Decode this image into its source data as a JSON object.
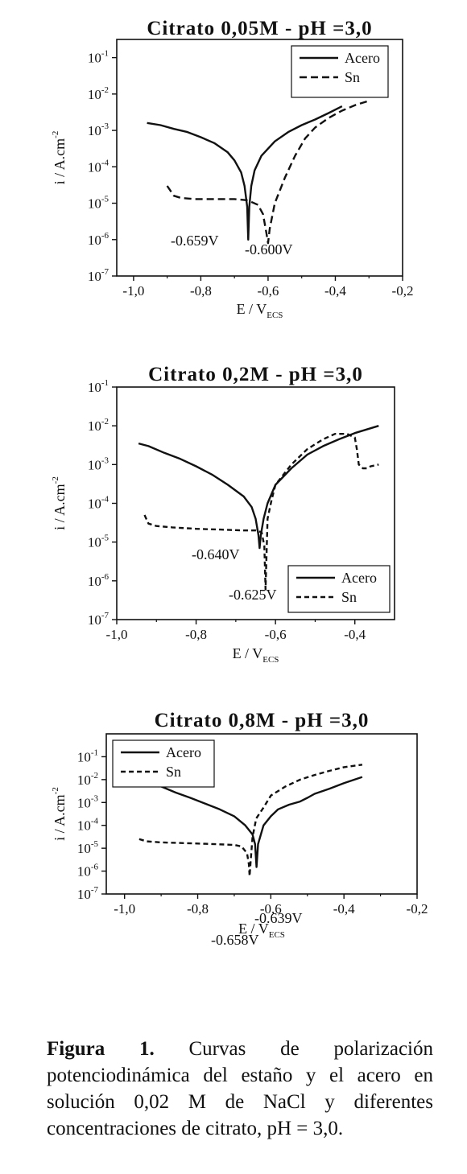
{
  "caption": {
    "label": "Figura 1.",
    "text": "Curvas de polarización potenciodinámica del estaño y el acero en solución 0,02 M de NaCl y diferentes concentraciones de citrato, pH = 3,0."
  },
  "chart_data": [
    {
      "type": "line",
      "title": "Citrato 0,05M - pH =3,0",
      "xlabel": "E / V",
      "xlabel_sub": "ECS",
      "ylabel": "i / A.cm",
      "ylabel_sup": "-2",
      "xlim": [
        -1.05,
        -0.2
      ],
      "ylim_log10": [
        -7,
        -0.5
      ],
      "y_scale": "log",
      "x_ticks": [
        -1.0,
        -0.8,
        -0.6,
        -0.4,
        -0.2
      ],
      "x_tick_labels": [
        "-1,0",
        "-0,8",
        "-0,6",
        "-0,4",
        "-0,2"
      ],
      "y_ticks_exp": [
        -7,
        -6,
        -5,
        -4,
        -3,
        -2,
        -1
      ],
      "y_tick_labels": [
        "10",
        "10",
        "10",
        "10",
        "10",
        "10",
        "10"
      ],
      "y_tick_sups": [
        "-7",
        "-6",
        "-5",
        "-4",
        "-3",
        "-2",
        "-1"
      ],
      "legend": {
        "placement": "top-right",
        "entries": [
          "Acero",
          "Sn"
        ]
      },
      "series": [
        {
          "name": "Acero",
          "style": "solid",
          "x": [
            -0.96,
            -0.92,
            -0.88,
            -0.84,
            -0.8,
            -0.76,
            -0.72,
            -0.7,
            -0.68,
            -0.67,
            -0.662,
            -0.659,
            -0.656,
            -0.65,
            -0.64,
            -0.62,
            -0.58,
            -0.54,
            -0.5,
            -0.46,
            -0.42,
            -0.38
          ],
          "y": [
            0.0016,
            0.0014,
            0.0011,
            0.0009,
            0.00065,
            0.00045,
            0.00025,
            0.00015,
            7e-05,
            3e-05,
            8e-06,
            1e-06,
            8e-06,
            3e-05,
            8e-05,
            0.0002,
            0.0005,
            0.0009,
            0.0014,
            0.002,
            0.003,
            0.0046
          ]
        },
        {
          "name": "Sn",
          "style": "dashed",
          "x": [
            -0.9,
            -0.88,
            -0.86,
            -0.82,
            -0.76,
            -0.7,
            -0.66,
            -0.63,
            -0.615,
            -0.605,
            -0.6,
            -0.595,
            -0.58,
            -0.55,
            -0.52,
            -0.49,
            -0.46,
            -0.42,
            -0.38,
            -0.34,
            -0.3
          ],
          "y": [
            3e-05,
            1.6e-05,
            1.4e-05,
            1.3e-05,
            1.3e-05,
            1.3e-05,
            1.2e-05,
            9e-06,
            5e-06,
            1.5e-06,
            8e-07,
            2e-06,
            1e-05,
            5e-05,
            0.0002,
            0.0006,
            0.0012,
            0.0022,
            0.0035,
            0.005,
            0.0065
          ]
        }
      ],
      "annotations": [
        "-0.659V",
        "-0.600V"
      ]
    },
    {
      "type": "line",
      "title": "Citrato 0,2M - pH =3,0",
      "xlabel": "E / V",
      "xlabel_sub": "ECS",
      "ylabel": "i / A.cm",
      "ylabel_sup": "-2",
      "xlim": [
        -1.0,
        -0.3
      ],
      "ylim_log10": [
        -7,
        -1
      ],
      "y_scale": "log",
      "x_ticks": [
        -1.0,
        -0.8,
        -0.6,
        -0.4
      ],
      "x_tick_labels": [
        "-1,0",
        "-0,8",
        "-0,6",
        "-0,4"
      ],
      "y_ticks_exp": [
        -7,
        -6,
        -5,
        -4,
        -3,
        -2,
        -1
      ],
      "y_tick_labels": [
        "10",
        "10",
        "10",
        "10",
        "10",
        "10",
        "10"
      ],
      "y_tick_sups": [
        "-7",
        "-6",
        "-5",
        "-4",
        "-3",
        "-2",
        "-1"
      ],
      "legend": {
        "placement": "bottom-right",
        "entries": [
          "Acero",
          "Sn"
        ]
      },
      "series": [
        {
          "name": "Acero",
          "style": "solid",
          "x": [
            -0.945,
            -0.92,
            -0.88,
            -0.84,
            -0.8,
            -0.76,
            -0.72,
            -0.68,
            -0.66,
            -0.65,
            -0.643,
            -0.64,
            -0.637,
            -0.63,
            -0.62,
            -0.6,
            -0.56,
            -0.52,
            -0.48,
            -0.44,
            -0.4,
            -0.34
          ],
          "y": [
            0.0035,
            0.003,
            0.002,
            0.0014,
            0.0009,
            0.00055,
            0.0003,
            0.00015,
            8e-05,
            4e-05,
            1.5e-05,
            7e-06,
            1.5e-05,
            4e-05,
            0.0001,
            0.0003,
            0.0008,
            0.0018,
            0.003,
            0.0045,
            0.0065,
            0.01
          ]
        },
        {
          "name": "Sn",
          "style": "dashed",
          "x": [
            -0.93,
            -0.92,
            -0.9,
            -0.86,
            -0.8,
            -0.74,
            -0.68,
            -0.65,
            -0.635,
            -0.628,
            -0.625,
            -0.62,
            -0.61,
            -0.6,
            -0.56,
            -0.52,
            -0.48,
            -0.45,
            -0.42,
            -0.4,
            -0.395,
            -0.39,
            -0.38,
            -0.37,
            -0.36,
            -0.34
          ],
          "y": [
            5e-05,
            3e-05,
            2.6e-05,
            2.4e-05,
            2.2e-05,
            2.1e-05,
            2e-05,
            2e-05,
            1.8e-05,
            8e-06,
            6e-07,
            4e-05,
            0.00012,
            0.0003,
            0.001,
            0.0025,
            0.0045,
            0.0062,
            0.0062,
            0.005,
            0.0025,
            0.001,
            0.0008,
            0.0008,
            0.0009,
            0.001
          ]
        }
      ],
      "annotations": [
        "-0.640V",
        "-0.625V"
      ]
    },
    {
      "type": "line",
      "title": "Citrato 0,8M - pH =3,0",
      "xlabel": "E / V",
      "xlabel_sub": "ECS",
      "ylabel": "i / A.cm",
      "ylabel_sup": "-2",
      "xlim": [
        -1.05,
        -0.2
      ],
      "ylim_log10": [
        -7,
        0
      ],
      "y_scale": "log",
      "x_ticks": [
        -1.0,
        -0.8,
        -0.6,
        -0.4,
        -0.2
      ],
      "x_tick_labels": [
        "-1,0",
        "-0,8",
        "-0,6",
        "-0,4",
        "-0,2"
      ],
      "y_ticks_exp": [
        -7,
        -6,
        -5,
        -4,
        -3,
        -2,
        -1
      ],
      "y_tick_labels": [
        "10",
        "10",
        "10",
        "10",
        "10",
        "10",
        "10"
      ],
      "y_tick_sups": [
        "-7",
        "-6",
        "-5",
        "-4",
        "-3",
        "-2",
        "-1"
      ],
      "legend": {
        "placement": "top-left",
        "entries": [
          "Acero",
          "Sn"
        ]
      },
      "series": [
        {
          "name": "Acero",
          "style": "solid",
          "x": [
            -0.94,
            -0.9,
            -0.86,
            -0.82,
            -0.78,
            -0.74,
            -0.7,
            -0.67,
            -0.65,
            -0.643,
            -0.639,
            -0.635,
            -0.62,
            -0.6,
            -0.58,
            -0.55,
            -0.52,
            -0.5,
            -0.48,
            -0.44,
            -0.4,
            -0.35
          ],
          "y": [
            0.008,
            0.005,
            0.0027,
            0.0016,
            0.0009,
            0.0005,
            0.00025,
            0.0001,
            4e-05,
            1.5e-05,
            1.5e-06,
            1.5e-05,
            0.0001,
            0.00025,
            0.0005,
            0.0008,
            0.0011,
            0.0016,
            0.0024,
            0.004,
            0.007,
            0.013
          ]
        },
        {
          "name": "Sn",
          "style": "dashed",
          "x": [
            -0.96,
            -0.94,
            -0.9,
            -0.85,
            -0.8,
            -0.75,
            -0.7,
            -0.68,
            -0.665,
            -0.66,
            -0.658,
            -0.655,
            -0.65,
            -0.64,
            -0.62,
            -0.6,
            -0.56,
            -0.52,
            -0.48,
            -0.44,
            -0.4,
            -0.35
          ],
          "y": [
            2.5e-05,
            2e-05,
            1.8e-05,
            1.7e-05,
            1.6e-05,
            1.5e-05,
            1.4e-05,
            1.2e-05,
            6e-06,
            2e-06,
            6e-07,
            3e-06,
            3e-05,
            0.0002,
            0.0006,
            0.002,
            0.005,
            0.01,
            0.016,
            0.024,
            0.035,
            0.045
          ]
        }
      ],
      "annotations": [
        "-0.639V",
        "-0.658V"
      ]
    }
  ]
}
